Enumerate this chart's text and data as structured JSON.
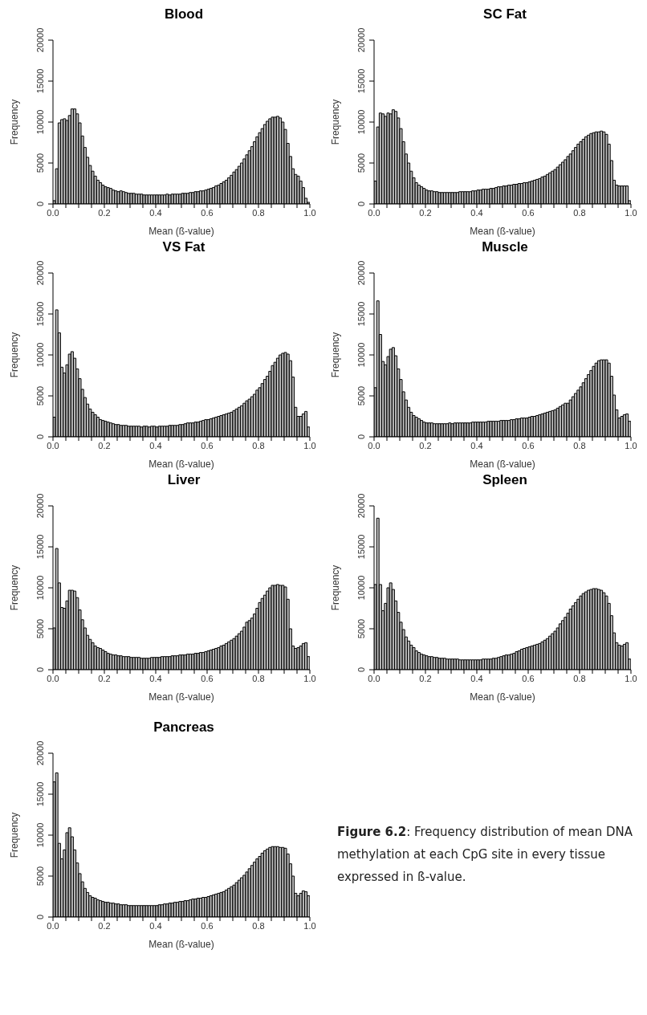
{
  "chart_data": [
    {
      "type": "histogram",
      "title": "Blood",
      "xlabel": "Mean (ß-value)",
      "ylabel": "Frequency",
      "color": "#bebebe",
      "xlim": [
        0,
        1
      ],
      "ylim": [
        0,
        20000
      ],
      "xticks": [
        {
          "value": 0,
          "label": "0.0"
        },
        {
          "value": 0.05,
          "label": null
        },
        {
          "value": 0.1,
          "label": null
        },
        {
          "value": 0.15,
          "label": null
        },
        {
          "value": 0.2,
          "label": "0.2"
        },
        {
          "value": 0.25,
          "label": null
        },
        {
          "value": 0.3,
          "label": null
        },
        {
          "value": 0.35,
          "label": null
        },
        {
          "value": 0.4,
          "label": "0.4"
        },
        {
          "value": 0.45,
          "label": null
        },
        {
          "value": 0.5,
          "label": null
        },
        {
          "value": 0.55,
          "label": null
        },
        {
          "value": 0.6,
          "label": "0.6"
        },
        {
          "value": 0.65,
          "label": null
        },
        {
          "value": 0.7,
          "label": null
        },
        {
          "value": 0.75,
          "label": null
        },
        {
          "value": 0.8,
          "label": "0.8"
        },
        {
          "value": 0.85,
          "label": null
        },
        {
          "value": 0.9,
          "label": null
        },
        {
          "value": 0.95,
          "label": null
        },
        {
          "value": 1,
          "label": "1.0"
        }
      ],
      "yticks": [
        0,
        5000,
        10000,
        15000,
        20000
      ],
      "bins": [
        0,
        0.01,
        0.02,
        0.03,
        0.04,
        0.05,
        0.06,
        0.07,
        0.08,
        0.09,
        0.1,
        0.11,
        0.12,
        0.13,
        0.14,
        0.15,
        0.16,
        0.17,
        0.18,
        0.19,
        0.2,
        0.21,
        0.22,
        0.23,
        0.24,
        0.25,
        0.26,
        0.27,
        0.28,
        0.29,
        0.3,
        0.31,
        0.32,
        0.33,
        0.34,
        0.35,
        0.36,
        0.37,
        0.38,
        0.39,
        0.4,
        0.41,
        0.42,
        0.43,
        0.44,
        0.45,
        0.46,
        0.47,
        0.48,
        0.49,
        0.5,
        0.51,
        0.52,
        0.53,
        0.54,
        0.55,
        0.56,
        0.57,
        0.58,
        0.59,
        0.6,
        0.61,
        0.62,
        0.63,
        0.64,
        0.65,
        0.66,
        0.67,
        0.68,
        0.69,
        0.7,
        0.71,
        0.72,
        0.73,
        0.74,
        0.75,
        0.76,
        0.77,
        0.78,
        0.79,
        0.8,
        0.81,
        0.82,
        0.83,
        0.84,
        0.85,
        0.86,
        0.87,
        0.88,
        0.89,
        0.9,
        0.91,
        0.92,
        0.93,
        0.94,
        0.95,
        0.96,
        0.97,
        0.98,
        0.99,
        1
      ],
      "values": [
        400,
        4300,
        9900,
        10300,
        10400,
        10200,
        10800,
        11600,
        11600,
        11000,
        9900,
        8300,
        6900,
        5700,
        4700,
        4000,
        3400,
        2900,
        2600,
        2300,
        2100,
        2000,
        1900,
        1700,
        1600,
        1500,
        1600,
        1500,
        1400,
        1300,
        1300,
        1300,
        1200,
        1200,
        1200,
        1100,
        1100,
        1100,
        1100,
        1100,
        1100,
        1100,
        1100,
        1100,
        1200,
        1100,
        1200,
        1200,
        1200,
        1200,
        1300,
        1300,
        1300,
        1400,
        1400,
        1500,
        1500,
        1600,
        1600,
        1700,
        1800,
        1900,
        2000,
        2200,
        2300,
        2500,
        2700,
        2900,
        3200,
        3500,
        3900,
        4200,
        4600,
        5000,
        5500,
        6000,
        6500,
        7000,
        7600,
        8200,
        8700,
        9200,
        9700,
        10100,
        10400,
        10600,
        10600,
        10700,
        10500,
        10000,
        9100,
        7400,
        5800,
        4300,
        3600,
        3400,
        2800,
        2000,
        700,
        200
      ]
    },
    {
      "type": "histogram",
      "title": "SC Fat",
      "xlabel": "Mean (ß-value)",
      "ylabel": "Frequency",
      "color": "#bebebe",
      "xlim": [
        0,
        1
      ],
      "ylim": [
        0,
        20000
      ],
      "xticks": [
        {
          "value": 0,
          "label": "0.0"
        },
        {
          "value": 0.05,
          "label": null
        },
        {
          "value": 0.1,
          "label": null
        },
        {
          "value": 0.15,
          "label": null
        },
        {
          "value": 0.2,
          "label": "0.2"
        },
        {
          "value": 0.25,
          "label": null
        },
        {
          "value": 0.3,
          "label": null
        },
        {
          "value": 0.35,
          "label": null
        },
        {
          "value": 0.4,
          "label": "0.4"
        },
        {
          "value": 0.45,
          "label": null
        },
        {
          "value": 0.5,
          "label": null
        },
        {
          "value": 0.55,
          "label": null
        },
        {
          "value": 0.6,
          "label": "0.6"
        },
        {
          "value": 0.65,
          "label": null
        },
        {
          "value": 0.7,
          "label": null
        },
        {
          "value": 0.75,
          "label": null
        },
        {
          "value": 0.8,
          "label": "0.8"
        },
        {
          "value": 0.85,
          "label": null
        },
        {
          "value": 0.9,
          "label": null
        },
        {
          "value": 0.95,
          "label": null
        },
        {
          "value": 1,
          "label": "1.0"
        }
      ],
      "yticks": [
        0,
        5000,
        10000,
        15000,
        20000
      ],
      "bins": [
        0,
        0.01,
        0.02,
        0.03,
        0.04,
        0.05,
        0.06,
        0.07,
        0.08,
        0.09,
        0.1,
        0.11,
        0.12,
        0.13,
        0.14,
        0.15,
        0.16,
        0.17,
        0.18,
        0.19,
        0.2,
        0.21,
        0.22,
        0.23,
        0.24,
        0.25,
        0.26,
        0.27,
        0.28,
        0.29,
        0.3,
        0.31,
        0.32,
        0.33,
        0.34,
        0.35,
        0.36,
        0.37,
        0.38,
        0.39,
        0.4,
        0.41,
        0.42,
        0.43,
        0.44,
        0.45,
        0.46,
        0.47,
        0.48,
        0.49,
        0.5,
        0.51,
        0.52,
        0.53,
        0.54,
        0.55,
        0.56,
        0.57,
        0.58,
        0.59,
        0.6,
        0.61,
        0.62,
        0.63,
        0.64,
        0.65,
        0.66,
        0.67,
        0.68,
        0.69,
        0.7,
        0.71,
        0.72,
        0.73,
        0.74,
        0.75,
        0.76,
        0.77,
        0.78,
        0.79,
        0.8,
        0.81,
        0.82,
        0.83,
        0.84,
        0.85,
        0.86,
        0.87,
        0.88,
        0.89,
        0.9,
        0.91,
        0.92,
        0.93,
        0.94,
        0.95,
        0.96,
        0.97,
        0.98,
        0.99,
        1
      ],
      "values": [
        2800,
        9400,
        11100,
        11000,
        10700,
        11100,
        11000,
        11500,
        11300,
        10500,
        9200,
        7600,
        6100,
        5000,
        4000,
        3200,
        2600,
        2300,
        2100,
        1900,
        1700,
        1600,
        1600,
        1500,
        1500,
        1400,
        1400,
        1400,
        1400,
        1400,
        1400,
        1400,
        1400,
        1500,
        1500,
        1500,
        1500,
        1500,
        1600,
        1600,
        1700,
        1700,
        1800,
        1800,
        1800,
        1900,
        1900,
        2000,
        2100,
        2100,
        2200,
        2200,
        2300,
        2300,
        2400,
        2400,
        2500,
        2500,
        2600,
        2600,
        2700,
        2800,
        2900,
        3000,
        3100,
        3300,
        3400,
        3600,
        3800,
        4000,
        4200,
        4500,
        4800,
        5100,
        5400,
        5800,
        6100,
        6500,
        6900,
        7300,
        7600,
        7900,
        8200,
        8400,
        8600,
        8700,
        8800,
        8800,
        8900,
        8800,
        8500,
        7300,
        5300,
        2900,
        2300,
        2200,
        2200,
        2200,
        2200,
        400
      ]
    },
    {
      "type": "histogram",
      "title": "VS Fat",
      "xlabel": "Mean (ß-value)",
      "ylabel": "Frequency",
      "color": "#bebebe",
      "xlim": [
        0,
        1
      ],
      "ylim": [
        0,
        20000
      ],
      "xticks": [
        {
          "value": 0,
          "label": "0.0"
        },
        {
          "value": 0.05,
          "label": null
        },
        {
          "value": 0.1,
          "label": null
        },
        {
          "value": 0.15,
          "label": null
        },
        {
          "value": 0.2,
          "label": "0.2"
        },
        {
          "value": 0.25,
          "label": null
        },
        {
          "value": 0.3,
          "label": null
        },
        {
          "value": 0.35,
          "label": null
        },
        {
          "value": 0.4,
          "label": "0.4"
        },
        {
          "value": 0.45,
          "label": null
        },
        {
          "value": 0.5,
          "label": null
        },
        {
          "value": 0.55,
          "label": null
        },
        {
          "value": 0.6,
          "label": "0.6"
        },
        {
          "value": 0.65,
          "label": null
        },
        {
          "value": 0.7,
          "label": null
        },
        {
          "value": 0.75,
          "label": null
        },
        {
          "value": 0.8,
          "label": "0.8"
        },
        {
          "value": 0.85,
          "label": null
        },
        {
          "value": 0.9,
          "label": null
        },
        {
          "value": 0.95,
          "label": null
        },
        {
          "value": 1,
          "label": "1.0"
        }
      ],
      "yticks": [
        0,
        5000,
        10000,
        15000,
        20000
      ],
      "bins": [
        0,
        0.01,
        0.02,
        0.03,
        0.04,
        0.05,
        0.06,
        0.07,
        0.08,
        0.09,
        0.1,
        0.11,
        0.12,
        0.13,
        0.14,
        0.15,
        0.16,
        0.17,
        0.18,
        0.19,
        0.2,
        0.21,
        0.22,
        0.23,
        0.24,
        0.25,
        0.26,
        0.27,
        0.28,
        0.29,
        0.3,
        0.31,
        0.32,
        0.33,
        0.34,
        0.35,
        0.36,
        0.37,
        0.38,
        0.39,
        0.4,
        0.41,
        0.42,
        0.43,
        0.44,
        0.45,
        0.46,
        0.47,
        0.48,
        0.49,
        0.5,
        0.51,
        0.52,
        0.53,
        0.54,
        0.55,
        0.56,
        0.57,
        0.58,
        0.59,
        0.6,
        0.61,
        0.62,
        0.63,
        0.64,
        0.65,
        0.66,
        0.67,
        0.68,
        0.69,
        0.7,
        0.71,
        0.72,
        0.73,
        0.74,
        0.75,
        0.76,
        0.77,
        0.78,
        0.79,
        0.8,
        0.81,
        0.82,
        0.83,
        0.84,
        0.85,
        0.86,
        0.87,
        0.88,
        0.89,
        0.9,
        0.91,
        0.92,
        0.93,
        0.94,
        0.95,
        0.96,
        0.97,
        0.98,
        0.99,
        1
      ],
      "values": [
        2400,
        15500,
        12700,
        8500,
        7800,
        8800,
        10100,
        10400,
        9600,
        8300,
        7100,
        5800,
        4800,
        4000,
        3400,
        3000,
        2700,
        2400,
        2100,
        2000,
        1900,
        1800,
        1700,
        1600,
        1500,
        1500,
        1400,
        1400,
        1400,
        1300,
        1300,
        1300,
        1300,
        1300,
        1200,
        1300,
        1300,
        1200,
        1300,
        1300,
        1200,
        1300,
        1300,
        1300,
        1300,
        1400,
        1400,
        1400,
        1400,
        1500,
        1500,
        1600,
        1700,
        1700,
        1700,
        1800,
        1800,
        1900,
        2000,
        2100,
        2100,
        2200,
        2300,
        2400,
        2500,
        2600,
        2700,
        2800,
        2900,
        3000,
        3200,
        3400,
        3600,
        3800,
        4100,
        4400,
        4600,
        4900,
        5200,
        5700,
        6000,
        6500,
        7000,
        7400,
        8000,
        8700,
        9100,
        9600,
        10000,
        10200,
        10300,
        10100,
        9300,
        7300,
        3600,
        2500,
        2500,
        2800,
        3100,
        1200
      ]
    },
    {
      "type": "histogram",
      "title": "Muscle",
      "xlabel": "Mean (ß-value)",
      "ylabel": "Frequency",
      "color": "#bebebe",
      "xlim": [
        0,
        1
      ],
      "ylim": [
        0,
        20000
      ],
      "xticks": [
        {
          "value": 0,
          "label": "0.0"
        },
        {
          "value": 0.05,
          "label": null
        },
        {
          "value": 0.1,
          "label": null
        },
        {
          "value": 0.15,
          "label": null
        },
        {
          "value": 0.2,
          "label": "0.2"
        },
        {
          "value": 0.25,
          "label": null
        },
        {
          "value": 0.3,
          "label": null
        },
        {
          "value": 0.35,
          "label": null
        },
        {
          "value": 0.4,
          "label": "0.4"
        },
        {
          "value": 0.45,
          "label": null
        },
        {
          "value": 0.5,
          "label": null
        },
        {
          "value": 0.55,
          "label": null
        },
        {
          "value": 0.6,
          "label": "0.6"
        },
        {
          "value": 0.65,
          "label": null
        },
        {
          "value": 0.7,
          "label": null
        },
        {
          "value": 0.75,
          "label": null
        },
        {
          "value": 0.8,
          "label": "0.8"
        },
        {
          "value": 0.85,
          "label": null
        },
        {
          "value": 0.9,
          "label": null
        },
        {
          "value": 0.95,
          "label": null
        },
        {
          "value": 1,
          "label": "1.0"
        }
      ],
      "yticks": [
        0,
        5000,
        10000,
        15000,
        20000
      ],
      "bins": [
        0,
        0.01,
        0.02,
        0.03,
        0.04,
        0.05,
        0.06,
        0.07,
        0.08,
        0.09,
        0.1,
        0.11,
        0.12,
        0.13,
        0.14,
        0.15,
        0.16,
        0.17,
        0.18,
        0.19,
        0.2,
        0.21,
        0.22,
        0.23,
        0.24,
        0.25,
        0.26,
        0.27,
        0.28,
        0.29,
        0.3,
        0.31,
        0.32,
        0.33,
        0.34,
        0.35,
        0.36,
        0.37,
        0.38,
        0.39,
        0.4,
        0.41,
        0.42,
        0.43,
        0.44,
        0.45,
        0.46,
        0.47,
        0.48,
        0.49,
        0.5,
        0.51,
        0.52,
        0.53,
        0.54,
        0.55,
        0.56,
        0.57,
        0.58,
        0.59,
        0.6,
        0.61,
        0.62,
        0.63,
        0.64,
        0.65,
        0.66,
        0.67,
        0.68,
        0.69,
        0.7,
        0.71,
        0.72,
        0.73,
        0.74,
        0.75,
        0.76,
        0.77,
        0.78,
        0.79,
        0.8,
        0.81,
        0.82,
        0.83,
        0.84,
        0.85,
        0.86,
        0.87,
        0.88,
        0.89,
        0.9,
        0.91,
        0.92,
        0.93,
        0.94,
        0.95,
        0.96,
        0.97,
        0.98,
        0.99,
        1
      ],
      "values": [
        6000,
        16600,
        12500,
        9200,
        8800,
        9800,
        10700,
        10900,
        9900,
        8300,
        7000,
        5500,
        4500,
        3600,
        3000,
        2600,
        2400,
        2200,
        2000,
        1800,
        1700,
        1700,
        1700,
        1600,
        1600,
        1600,
        1600,
        1600,
        1600,
        1700,
        1600,
        1700,
        1700,
        1700,
        1700,
        1700,
        1700,
        1700,
        1800,
        1800,
        1800,
        1800,
        1800,
        1800,
        1900,
        1900,
        1900,
        1900,
        1900,
        2000,
        2000,
        2000,
        2000,
        2100,
        2100,
        2200,
        2200,
        2300,
        2300,
        2300,
        2400,
        2500,
        2500,
        2600,
        2700,
        2800,
        2900,
        3000,
        3100,
        3200,
        3300,
        3500,
        3700,
        3900,
        4100,
        4100,
        4500,
        4900,
        5300,
        5700,
        6100,
        6600,
        7100,
        7600,
        8100,
        8600,
        9000,
        9300,
        9400,
        9400,
        9400,
        9000,
        7400,
        5100,
        3300,
        2300,
        2500,
        2700,
        2800,
        1900
      ]
    },
    {
      "type": "histogram",
      "title": "Liver",
      "xlabel": "Mean (ß-value)",
      "ylabel": "Frequency",
      "color": "#bebebe",
      "xlim": [
        0,
        1
      ],
      "ylim": [
        0,
        20000
      ],
      "xticks": [
        {
          "value": 0,
          "label": "0.0"
        },
        {
          "value": 0.05,
          "label": null
        },
        {
          "value": 0.1,
          "label": null
        },
        {
          "value": 0.15,
          "label": null
        },
        {
          "value": 0.2,
          "label": "0.2"
        },
        {
          "value": 0.25,
          "label": null
        },
        {
          "value": 0.3,
          "label": null
        },
        {
          "value": 0.35,
          "label": null
        },
        {
          "value": 0.4,
          "label": "0.4"
        },
        {
          "value": 0.45,
          "label": null
        },
        {
          "value": 0.5,
          "label": null
        },
        {
          "value": 0.55,
          "label": null
        },
        {
          "value": 0.6,
          "label": "0.6"
        },
        {
          "value": 0.65,
          "label": null
        },
        {
          "value": 0.7,
          "label": null
        },
        {
          "value": 0.75,
          "label": null
        },
        {
          "value": 0.8,
          "label": "0.8"
        },
        {
          "value": 0.85,
          "label": null
        },
        {
          "value": 0.9,
          "label": null
        },
        {
          "value": 0.95,
          "label": null
        },
        {
          "value": 1,
          "label": "1.0"
        }
      ],
      "yticks": [
        0,
        5000,
        10000,
        15000,
        20000
      ],
      "bins": [
        0,
        0.01,
        0.02,
        0.03,
        0.04,
        0.05,
        0.06,
        0.07,
        0.08,
        0.09,
        0.1,
        0.11,
        0.12,
        0.13,
        0.14,
        0.15,
        0.16,
        0.17,
        0.18,
        0.19,
        0.2,
        0.21,
        0.22,
        0.23,
        0.24,
        0.25,
        0.26,
        0.27,
        0.28,
        0.29,
        0.3,
        0.31,
        0.32,
        0.33,
        0.34,
        0.35,
        0.36,
        0.37,
        0.38,
        0.39,
        0.4,
        0.41,
        0.42,
        0.43,
        0.44,
        0.45,
        0.46,
        0.47,
        0.48,
        0.49,
        0.5,
        0.51,
        0.52,
        0.53,
        0.54,
        0.55,
        0.56,
        0.57,
        0.58,
        0.59,
        0.6,
        0.61,
        0.62,
        0.63,
        0.64,
        0.65,
        0.66,
        0.67,
        0.68,
        0.69,
        0.7,
        0.71,
        0.72,
        0.73,
        0.74,
        0.75,
        0.76,
        0.77,
        0.78,
        0.79,
        0.8,
        0.81,
        0.82,
        0.83,
        0.84,
        0.85,
        0.86,
        0.87,
        0.88,
        0.89,
        0.9,
        0.91,
        0.92,
        0.93,
        0.94,
        0.95,
        0.96,
        0.97,
        0.98,
        0.99,
        1
      ],
      "values": [
        5100,
        14800,
        10600,
        7600,
        7500,
        8400,
        9700,
        9700,
        9600,
        8800,
        7300,
        6100,
        5100,
        4200,
        3700,
        3300,
        2900,
        2700,
        2600,
        2400,
        2200,
        2000,
        1900,
        1800,
        1800,
        1700,
        1700,
        1600,
        1600,
        1600,
        1500,
        1500,
        1500,
        1500,
        1400,
        1400,
        1400,
        1400,
        1500,
        1500,
        1500,
        1500,
        1600,
        1600,
        1600,
        1600,
        1700,
        1700,
        1700,
        1800,
        1800,
        1800,
        1900,
        1900,
        1900,
        2000,
        2000,
        2100,
        2100,
        2200,
        2300,
        2400,
        2500,
        2600,
        2700,
        2900,
        3000,
        3200,
        3400,
        3600,
        3800,
        4100,
        4400,
        4700,
        5200,
        5800,
        6000,
        6300,
        6800,
        7500,
        8200,
        8700,
        9100,
        9600,
        10000,
        10300,
        10300,
        10400,
        10300,
        10300,
        10100,
        8600,
        5000,
        2900,
        2600,
        2700,
        2900,
        3200,
        3300,
        1600
      ]
    },
    {
      "type": "histogram",
      "title": "Spleen",
      "xlabel": "Mean (ß-value)",
      "ylabel": "Frequency",
      "color": "#bebebe",
      "xlim": [
        0,
        1
      ],
      "ylim": [
        0,
        20000
      ],
      "xticks": [
        {
          "value": 0,
          "label": "0.0"
        },
        {
          "value": 0.05,
          "label": null
        },
        {
          "value": 0.1,
          "label": null
        },
        {
          "value": 0.15,
          "label": null
        },
        {
          "value": 0.2,
          "label": "0.2"
        },
        {
          "value": 0.25,
          "label": null
        },
        {
          "value": 0.3,
          "label": null
        },
        {
          "value": 0.35,
          "label": null
        },
        {
          "value": 0.4,
          "label": "0.4"
        },
        {
          "value": 0.45,
          "label": null
        },
        {
          "value": 0.5,
          "label": null
        },
        {
          "value": 0.55,
          "label": null
        },
        {
          "value": 0.6,
          "label": "0.6"
        },
        {
          "value": 0.65,
          "label": null
        },
        {
          "value": 0.7,
          "label": null
        },
        {
          "value": 0.75,
          "label": null
        },
        {
          "value": 0.8,
          "label": "0.8"
        },
        {
          "value": 0.85,
          "label": null
        },
        {
          "value": 0.9,
          "label": null
        },
        {
          "value": 0.95,
          "label": null
        },
        {
          "value": 1,
          "label": "1.0"
        }
      ],
      "yticks": [
        0,
        5000,
        10000,
        15000,
        20000
      ],
      "bins": [
        0,
        0.01,
        0.02,
        0.03,
        0.04,
        0.05,
        0.06,
        0.07,
        0.08,
        0.09,
        0.1,
        0.11,
        0.12,
        0.13,
        0.14,
        0.15,
        0.16,
        0.17,
        0.18,
        0.19,
        0.2,
        0.21,
        0.22,
        0.23,
        0.24,
        0.25,
        0.26,
        0.27,
        0.28,
        0.29,
        0.3,
        0.31,
        0.32,
        0.33,
        0.34,
        0.35,
        0.36,
        0.37,
        0.38,
        0.39,
        0.4,
        0.41,
        0.42,
        0.43,
        0.44,
        0.45,
        0.46,
        0.47,
        0.48,
        0.49,
        0.5,
        0.51,
        0.52,
        0.53,
        0.54,
        0.55,
        0.56,
        0.57,
        0.58,
        0.59,
        0.6,
        0.61,
        0.62,
        0.63,
        0.64,
        0.65,
        0.66,
        0.67,
        0.68,
        0.69,
        0.7,
        0.71,
        0.72,
        0.73,
        0.74,
        0.75,
        0.76,
        0.77,
        0.78,
        0.79,
        0.8,
        0.81,
        0.82,
        0.83,
        0.84,
        0.85,
        0.86,
        0.87,
        0.88,
        0.89,
        0.9,
        0.91,
        0.92,
        0.93,
        0.94,
        0.95,
        0.96,
        0.97,
        0.98,
        0.99,
        1
      ],
      "values": [
        10400,
        18500,
        10400,
        7200,
        8100,
        10000,
        10600,
        9800,
        8400,
        7000,
        5800,
        4900,
        4000,
        3500,
        3000,
        2700,
        2300,
        2100,
        1900,
        1800,
        1700,
        1600,
        1600,
        1500,
        1500,
        1400,
        1400,
        1400,
        1300,
        1300,
        1300,
        1300,
        1300,
        1200,
        1200,
        1200,
        1200,
        1200,
        1200,
        1200,
        1200,
        1200,
        1300,
        1300,
        1300,
        1300,
        1400,
        1400,
        1500,
        1600,
        1700,
        1800,
        1800,
        1900,
        2000,
        2200,
        2300,
        2500,
        2600,
        2700,
        2800,
        2900,
        3000,
        3100,
        3200,
        3400,
        3600,
        3800,
        4100,
        4400,
        4700,
        5100,
        5600,
        6000,
        6400,
        6900,
        7400,
        7800,
        8200,
        8600,
        9000,
        9300,
        9500,
        9700,
        9800,
        9900,
        9900,
        9800,
        9700,
        9400,
        9000,
        8100,
        6600,
        4500,
        3300,
        3000,
        2900,
        3100,
        3300,
        1300
      ]
    },
    {
      "type": "histogram",
      "title": "Pancreas",
      "xlabel": "Mean (ß-value)",
      "ylabel": "Frequency",
      "color": "#bebebe",
      "xlim": [
        0,
        1
      ],
      "ylim": [
        0,
        20000
      ],
      "xticks": [
        {
          "value": 0,
          "label": "0.0"
        },
        {
          "value": 0.05,
          "label": null
        },
        {
          "value": 0.1,
          "label": null
        },
        {
          "value": 0.15,
          "label": null
        },
        {
          "value": 0.2,
          "label": "0.2"
        },
        {
          "value": 0.25,
          "label": null
        },
        {
          "value": 0.3,
          "label": null
        },
        {
          "value": 0.35,
          "label": null
        },
        {
          "value": 0.4,
          "label": "0.4"
        },
        {
          "value": 0.45,
          "label": null
        },
        {
          "value": 0.5,
          "label": null
        },
        {
          "value": 0.55,
          "label": null
        },
        {
          "value": 0.6,
          "label": "0.6"
        },
        {
          "value": 0.65,
          "label": null
        },
        {
          "value": 0.7,
          "label": null
        },
        {
          "value": 0.75,
          "label": null
        },
        {
          "value": 0.8,
          "label": "0.8"
        },
        {
          "value": 0.85,
          "label": null
        },
        {
          "value": 0.9,
          "label": null
        },
        {
          "value": 0.95,
          "label": null
        },
        {
          "value": 1,
          "label": "1.0"
        }
      ],
      "yticks": [
        0,
        5000,
        10000,
        15000,
        20000
      ],
      "bins": [
        0,
        0.01,
        0.02,
        0.03,
        0.04,
        0.05,
        0.06,
        0.07,
        0.08,
        0.09,
        0.1,
        0.11,
        0.12,
        0.13,
        0.14,
        0.15,
        0.16,
        0.17,
        0.18,
        0.19,
        0.2,
        0.21,
        0.22,
        0.23,
        0.24,
        0.25,
        0.26,
        0.27,
        0.28,
        0.29,
        0.3,
        0.31,
        0.32,
        0.33,
        0.34,
        0.35,
        0.36,
        0.37,
        0.38,
        0.39,
        0.4,
        0.41,
        0.42,
        0.43,
        0.44,
        0.45,
        0.46,
        0.47,
        0.48,
        0.49,
        0.5,
        0.51,
        0.52,
        0.53,
        0.54,
        0.55,
        0.56,
        0.57,
        0.58,
        0.59,
        0.6,
        0.61,
        0.62,
        0.63,
        0.64,
        0.65,
        0.66,
        0.67,
        0.68,
        0.69,
        0.7,
        0.71,
        0.72,
        0.73,
        0.74,
        0.75,
        0.76,
        0.77,
        0.78,
        0.79,
        0.8,
        0.81,
        0.82,
        0.83,
        0.84,
        0.85,
        0.86,
        0.87,
        0.88,
        0.89,
        0.9,
        0.91,
        0.92,
        0.93,
        0.94,
        0.95,
        0.96,
        0.97,
        0.98,
        0.99,
        1
      ],
      "values": [
        16500,
        17600,
        9000,
        7100,
        8200,
        10300,
        10900,
        9800,
        8200,
        6600,
        5300,
        4300,
        3500,
        3000,
        2600,
        2400,
        2300,
        2100,
        2000,
        1900,
        1800,
        1800,
        1700,
        1700,
        1600,
        1600,
        1500,
        1500,
        1500,
        1400,
        1400,
        1400,
        1400,
        1400,
        1400,
        1400,
        1400,
        1400,
        1400,
        1400,
        1400,
        1500,
        1500,
        1600,
        1600,
        1700,
        1700,
        1800,
        1800,
        1900,
        1900,
        2000,
        2000,
        2100,
        2200,
        2200,
        2300,
        2300,
        2400,
        2400,
        2500,
        2600,
        2700,
        2800,
        2900,
        3000,
        3100,
        3300,
        3500,
        3700,
        3900,
        4200,
        4500,
        4800,
        5100,
        5500,
        5900,
        6300,
        6700,
        7100,
        7400,
        7800,
        8100,
        8300,
        8500,
        8600,
        8600,
        8600,
        8500,
        8500,
        8400,
        7700,
        6500,
        5000,
        2900,
        2600,
        2900,
        3200,
        3100,
        2600
      ]
    },
    {
      "type": "other",
      "annotations": [
        "Figure 6.2: Frequency distribution of mean DNA methylation at each CpG site in every tissue expressed in ß-value."
      ]
    }
  ]
}
